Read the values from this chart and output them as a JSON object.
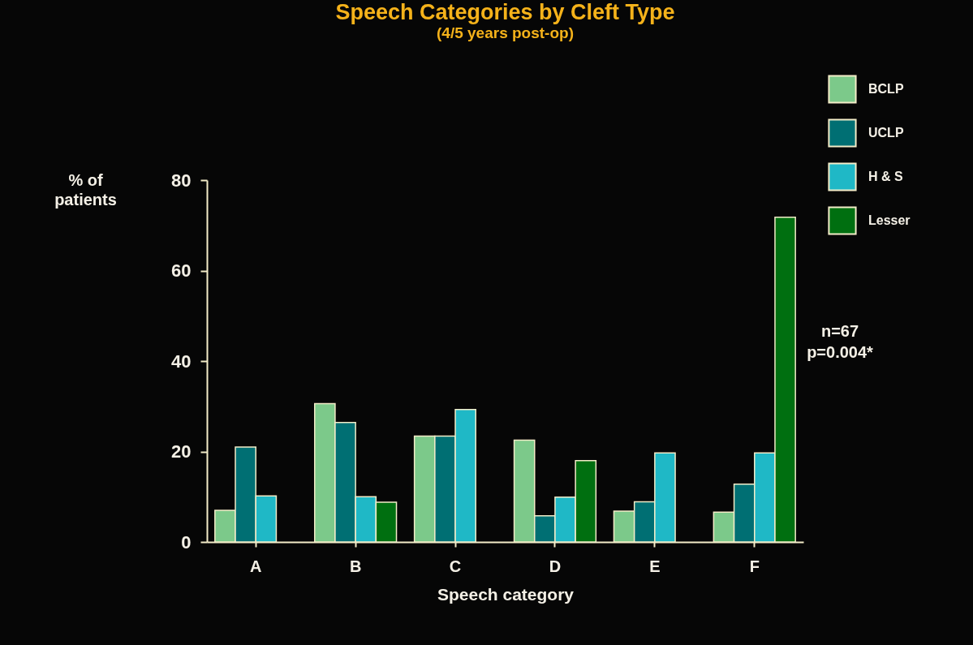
{
  "chart_data": {
    "type": "bar",
    "title": "Speech Categories by Cleft Type",
    "subtitle": "(4/5 years post-op)",
    "xlabel": "Speech category",
    "ylabel": "% of patients",
    "categories": [
      "A",
      "B",
      "C",
      "D",
      "E",
      "F"
    ],
    "series": [
      {
        "name": "BCLP",
        "color": "#7cc98a",
        "values": [
          7,
          30.6,
          23.4,
          22.5,
          6.8,
          6.6
        ]
      },
      {
        "name": "UCLP",
        "color": "#006f73",
        "values": [
          21,
          26.4,
          23.4,
          5.8,
          8.9,
          12.8
        ]
      },
      {
        "name": "H & S",
        "color": "#1fb8c6",
        "values": [
          10.2,
          10,
          29.3,
          9.9,
          19.7,
          19.7
        ]
      },
      {
        "name": "Lesser",
        "color": "#006f10",
        "values": [
          null,
          8.8,
          null,
          18,
          null,
          71.8
        ]
      }
    ],
    "ylim": [
      0,
      80
    ],
    "yticks": [
      0,
      20,
      40,
      60,
      80
    ],
    "legend": "top right",
    "annotations": [
      "n=67",
      "p=0.004*"
    ]
  }
}
